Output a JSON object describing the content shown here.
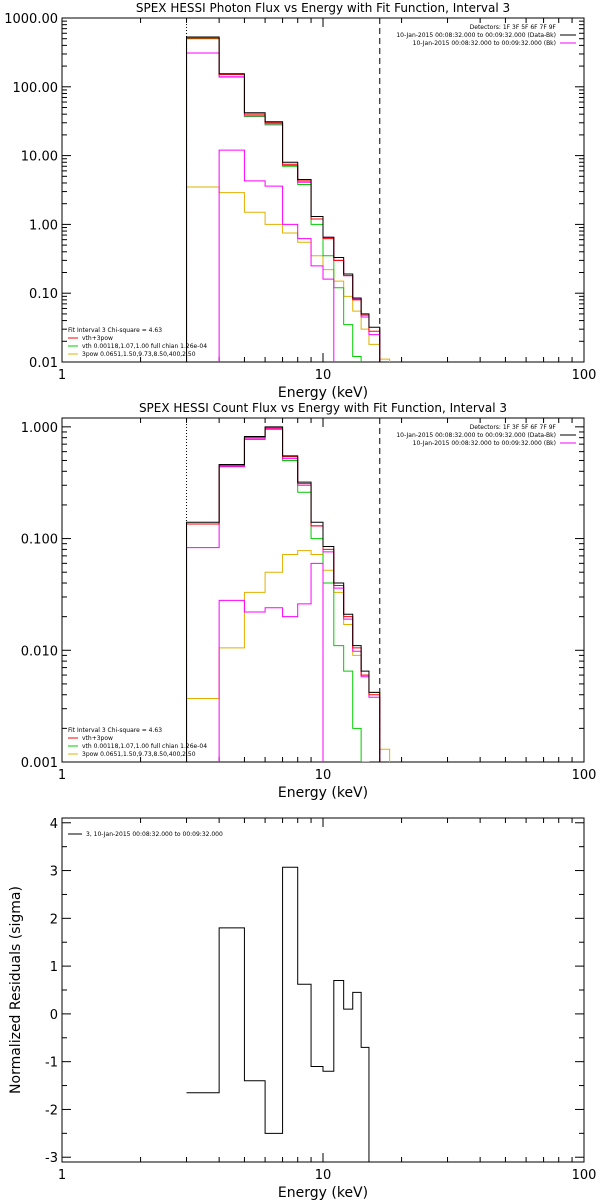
{
  "colors": {
    "data": "#000000",
    "background": "#ff0000",
    "total_fit": "#ff00ff",
    "thermal": "#00cc00",
    "power_law": "#e0b000",
    "axes": "#000000"
  },
  "chart_data": [
    {
      "type": "line",
      "subtype": "step",
      "title": "SPEX HESSI Photon Flux vs Energy with Fit Function, Interval 3",
      "xlabel": "Energy (keV)",
      "ylabel": "",
      "xscale": "log",
      "yscale": "log",
      "xlim": [
        1,
        100
      ],
      "ylim": [
        0.01,
        1000
      ],
      "xticks": [
        1,
        10,
        100
      ],
      "xtick_labels": [
        "1",
        "10",
        "100"
      ],
      "yticks": [
        0.01,
        0.1,
        1,
        10,
        100,
        1000
      ],
      "ytick_labels": [
        "0.01",
        "0.10",
        "1.00",
        "10.00",
        "100.00",
        "1000.00"
      ],
      "legend_right": [
        "Detectors: 1F 3F 5F 6F 7F 9F",
        "10-Jan-2015 00:08:32.000 to 00:09:32.000 (Data-Bk)",
        "10-Jan-2015 00:08:32.000 to 00:09:32.000 (Bk)"
      ],
      "legend_left": [
        "Fit Interval 3   Chi-square = 4.63",
        "vth+3pow",
        "vth 0.00118,1.07,1.00  full chian 1.26e-04",
        "3pow 0.0651,1.50,9.73,8.50,400,2.50"
      ],
      "vlines": [
        {
          "x": 3.0,
          "style": "dotted"
        },
        {
          "x": 16.5,
          "style": "dashed"
        }
      ],
      "edges": [
        3,
        4,
        5,
        6,
        7,
        8,
        9,
        10,
        11,
        12,
        13,
        14,
        15,
        16.5,
        18,
        20
      ],
      "series": [
        {
          "key": "data",
          "values": [
            530,
            155,
            42,
            31,
            8.0,
            4.5,
            1.3,
            0.65,
            0.33,
            0.19,
            0.085,
            0.05,
            0.032,
            null,
            null
          ]
        },
        {
          "key": "background",
          "values": [
            510,
            150,
            40,
            30,
            7.5,
            4.3,
            1.2,
            0.62,
            0.3,
            0.18,
            0.08,
            0.048,
            0.028,
            null,
            null
          ]
        },
        {
          "key": "total_fit",
          "values": [
            310,
            140,
            38,
            29,
            7.2,
            4.1,
            1.2,
            0.65,
            0.3,
            0.18,
            0.082,
            0.045,
            0.025,
            0.0,
            null
          ]
        },
        {
          "key": "thermal",
          "values": [
            500,
            138,
            37,
            28,
            7.0,
            3.8,
            1.0,
            0.35,
            0.12,
            0.035,
            0.012,
            0.0,
            null,
            null,
            null
          ]
        },
        {
          "key": "power_law",
          "values": [
            3.5,
            2.9,
            1.5,
            1.0,
            0.75,
            0.55,
            0.35,
            0.22,
            0.15,
            0.09,
            0.055,
            0.03,
            0.018,
            0.011,
            0.0
          ]
        },
        {
          "key": "total_fit_low",
          "values": [
            null,
            12,
            4.3,
            3.6,
            1.0,
            0.62,
            0.25,
            0.16,
            null,
            null,
            null,
            null,
            null,
            null,
            null
          ]
        }
      ]
    },
    {
      "type": "line",
      "subtype": "step",
      "title": "SPEX HESSI Count Flux vs Energy with Fit Function, Interval 3",
      "xlabel": "Energy (keV)",
      "ylabel": "",
      "xscale": "log",
      "yscale": "log",
      "xlim": [
        1,
        100
      ],
      "ylim": [
        0.001,
        1.2
      ],
      "xticks": [
        1,
        10,
        100
      ],
      "xtick_labels": [
        "1",
        "10",
        "100"
      ],
      "yticks": [
        0.001,
        0.01,
        0.1,
        1
      ],
      "ytick_labels": [
        "0.001",
        "0.010",
        "0.100",
        "1.000"
      ],
      "legend_right": [
        "Detectors: 1F 3F 5F 6F 7F 9F",
        "10-Jan-2015 00:08:32.000 to 00:09:32.000 (Data-Bk)",
        "10-Jan-2015 00:08:32.000 to 00:09:32.000 (Bk)"
      ],
      "legend_left": [
        "Fit Interval 3   Chi-square = 4.63",
        "vth+3pow",
        "vth 0.00118,1.07,1.00  full chian 1.26e-04",
        "3pow 0.0651,1.50,9.73,8.50,400,2.50"
      ],
      "vlines": [
        {
          "x": 3.0,
          "style": "dotted"
        },
        {
          "x": 16.5,
          "style": "dashed"
        }
      ],
      "edges": [
        3,
        4,
        5,
        6,
        7,
        8,
        9,
        10,
        11,
        12,
        13,
        14,
        15,
        16.5,
        18,
        20
      ],
      "series": [
        {
          "key": "data",
          "values": [
            0.14,
            0.46,
            0.82,
            1.0,
            0.55,
            0.32,
            0.14,
            0.085,
            0.04,
            0.021,
            0.011,
            0.0065,
            0.0042,
            null,
            null
          ]
        },
        {
          "key": "background",
          "values": [
            0.135,
            0.45,
            0.8,
            0.98,
            0.54,
            0.31,
            0.13,
            0.08,
            0.038,
            0.02,
            0.0105,
            0.006,
            0.004,
            null,
            null
          ]
        },
        {
          "key": "total_fit",
          "values": [
            0.083,
            0.44,
            0.78,
            0.96,
            0.52,
            0.3,
            0.13,
            0.076,
            0.036,
            0.019,
            0.0098,
            0.0058,
            0.0038,
            0.0,
            null
          ]
        },
        {
          "key": "thermal",
          "values": [
            0.135,
            0.44,
            0.77,
            0.95,
            0.5,
            0.26,
            0.1,
            0.04,
            0.011,
            0.0065,
            0.002,
            0.001,
            null,
            null,
            null
          ]
        },
        {
          "key": "power_law",
          "values": [
            0.0037,
            0.0105,
            0.033,
            0.05,
            0.072,
            0.078,
            0.072,
            0.052,
            0.033,
            0.017,
            0.009,
            0.006,
            0.0042,
            0.0013,
            0.0
          ]
        },
        {
          "key": "total_fit_low",
          "values": [
            null,
            0.028,
            0.022,
            0.024,
            0.02,
            0.026,
            0.06,
            null,
            null,
            null,
            null,
            null,
            null,
            null,
            null
          ]
        }
      ]
    },
    {
      "type": "line",
      "subtype": "step",
      "title": "",
      "xlabel": "Energy (keV)",
      "ylabel": "Normalized Residuals (sigma)",
      "xscale": "log",
      "yscale": "linear",
      "xlim": [
        1,
        100
      ],
      "ylim": [
        -3.1,
        4.1
      ],
      "xticks": [
        1,
        10,
        100
      ],
      "xtick_labels": [
        "1",
        "10",
        "100"
      ],
      "yticks": [
        -3,
        -2,
        -1,
        0,
        1,
        2,
        3,
        4
      ],
      "ytick_labels": [
        "-3",
        "-2",
        "-1",
        "0",
        "1",
        "2",
        "3",
        "4"
      ],
      "legend_left": [
        "3, 10-Jan-2015 00:08:32.000 to 00:09:32.000"
      ],
      "edges": [
        3,
        4,
        5,
        6,
        7,
        8,
        9,
        10,
        11,
        12,
        13,
        14,
        15,
        16.5
      ],
      "series": [
        {
          "key": "data",
          "values": [
            -1.65,
            1.8,
            -1.4,
            -2.5,
            3.07,
            0.62,
            -1.1,
            -1.2,
            0.7,
            0.1,
            0.45,
            -0.7,
            -3.1
          ]
        }
      ]
    }
  ]
}
